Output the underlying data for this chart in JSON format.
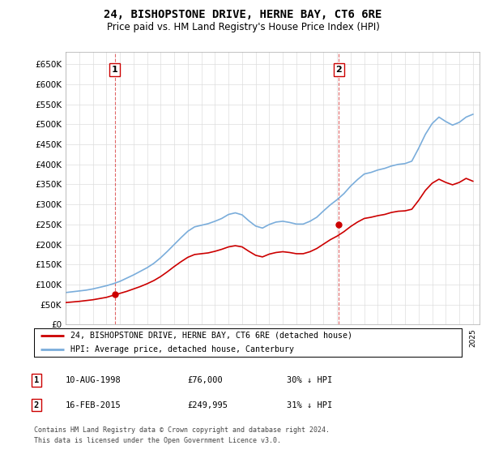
{
  "title": "24, BISHOPSTONE DRIVE, HERNE BAY, CT6 6RE",
  "subtitle": "Price paid vs. HM Land Registry's House Price Index (HPI)",
  "legend_line1": "24, BISHOPSTONE DRIVE, HERNE BAY, CT6 6RE (detached house)",
  "legend_line2": "HPI: Average price, detached house, Canterbury",
  "footnote_line1": "Contains HM Land Registry data © Crown copyright and database right 2024.",
  "footnote_line2": "This data is licensed under the Open Government Licence v3.0.",
  "table": [
    {
      "num": "1",
      "date": "10-AUG-1998",
      "price": "£76,000",
      "hpi": "30% ↓ HPI"
    },
    {
      "num": "2",
      "date": "16-FEB-2015",
      "price": "£249,995",
      "hpi": "31% ↓ HPI"
    }
  ],
  "sale1_x": 1998.62,
  "sale1_y": 76000,
  "sale2_x": 2015.12,
  "sale2_y": 249995,
  "ylim": [
    0,
    680000
  ],
  "yticks": [
    0,
    50000,
    100000,
    150000,
    200000,
    250000,
    300000,
    350000,
    400000,
    450000,
    500000,
    550000,
    600000,
    650000
  ],
  "xlim_start": 1995.0,
  "xlim_end": 2025.5,
  "background_color": "#ffffff",
  "grid_color": "#dddddd",
  "hpi_color": "#7aaddb",
  "price_color": "#cc0000",
  "dashed_color": "#cc0000",
  "sale_marker_color": "#cc0000",
  "years_hpi": [
    1995.0,
    1995.5,
    1996.0,
    1996.5,
    1997.0,
    1997.5,
    1998.0,
    1998.5,
    1999.0,
    1999.5,
    2000.0,
    2000.5,
    2001.0,
    2001.5,
    2002.0,
    2002.5,
    2003.0,
    2003.5,
    2004.0,
    2004.5,
    2005.0,
    2005.5,
    2006.0,
    2006.5,
    2007.0,
    2007.5,
    2008.0,
    2008.5,
    2009.0,
    2009.5,
    2010.0,
    2010.5,
    2011.0,
    2011.5,
    2012.0,
    2012.5,
    2013.0,
    2013.5,
    2014.0,
    2014.5,
    2015.0,
    2015.5,
    2016.0,
    2016.5,
    2017.0,
    2017.5,
    2018.0,
    2018.5,
    2019.0,
    2019.5,
    2020.0,
    2020.5,
    2021.0,
    2021.5,
    2022.0,
    2022.5,
    2023.0,
    2023.5,
    2024.0,
    2024.5,
    2025.0
  ],
  "hpi_values": [
    80000,
    82000,
    84000,
    86000,
    89000,
    93000,
    97000,
    102000,
    108000,
    116000,
    124000,
    133000,
    142000,
    153000,
    167000,
    183000,
    200000,
    217000,
    233000,
    244000,
    248000,
    252000,
    258000,
    265000,
    275000,
    279000,
    274000,
    259000,
    246000,
    241000,
    250000,
    256000,
    258000,
    255000,
    251000,
    251000,
    258000,
    268000,
    284000,
    299000,
    312000,
    327000,
    346000,
    362000,
    376000,
    380000,
    386000,
    390000,
    396000,
    400000,
    402000,
    408000,
    440000,
    475000,
    502000,
    518000,
    507000,
    498000,
    505000,
    518000,
    525000
  ],
  "price_years": [
    1995.0,
    1995.5,
    1996.0,
    1996.5,
    1997.0,
    1997.5,
    1998.0,
    1998.5,
    1999.0,
    1999.5,
    2000.0,
    2000.5,
    2001.0,
    2001.5,
    2002.0,
    2002.5,
    2003.0,
    2003.5,
    2004.0,
    2004.5,
    2005.0,
    2005.5,
    2006.0,
    2006.5,
    2007.0,
    2007.5,
    2008.0,
    2008.5,
    2009.0,
    2009.5,
    2010.0,
    2010.5,
    2011.0,
    2011.5,
    2012.0,
    2012.5,
    2013.0,
    2013.5,
    2014.0,
    2014.5,
    2015.0,
    2015.5,
    2016.0,
    2016.5,
    2017.0,
    2017.5,
    2018.0,
    2018.5,
    2019.0,
    2019.5,
    2020.0,
    2020.5,
    2021.0,
    2021.5,
    2022.0,
    2022.5,
    2023.0,
    2023.5,
    2024.0,
    2024.5,
    2025.0
  ],
  "price_values": [
    55000,
    56500,
    58000,
    60000,
    62000,
    65000,
    68000,
    73000,
    78000,
    83000,
    89000,
    95000,
    102000,
    110000,
    120000,
    132000,
    145000,
    157000,
    168000,
    175000,
    177000,
    179000,
    183000,
    188000,
    194000,
    197000,
    194000,
    183000,
    173000,
    169000,
    176000,
    180000,
    182000,
    180000,
    177000,
    177000,
    182000,
    190000,
    201000,
    212000,
    221000,
    232000,
    245000,
    256000,
    265000,
    268000,
    272000,
    275000,
    280000,
    283000,
    284000,
    288000,
    310000,
    335000,
    353000,
    363000,
    355000,
    349000,
    355000,
    365000,
    358000
  ]
}
